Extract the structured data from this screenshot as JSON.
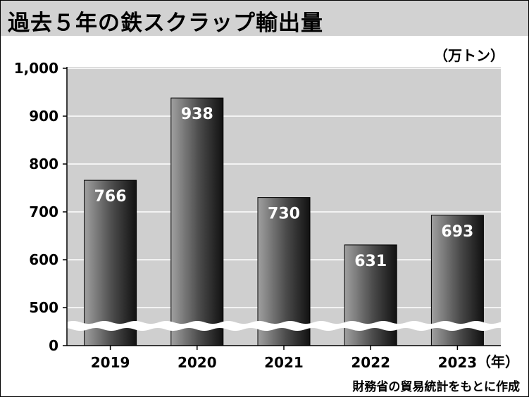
{
  "title": "過去５年の鉄スクラップ輸出量",
  "unit": "（万トン）",
  "source": "財務省の貿易統計をもとに作成",
  "chart_data": {
    "type": "bar",
    "title": "過去５年の鉄スクラップ輸出量",
    "categories": [
      "2019",
      "2020",
      "2021",
      "2022",
      "2023"
    ],
    "category_suffix": "（年）",
    "values": [
      766,
      938,
      730,
      631,
      693
    ],
    "y_ticks": [
      "0",
      "500",
      "600",
      "700",
      "800",
      "900",
      "1,000"
    ],
    "ylim": [
      450,
      1000
    ],
    "axis_break": true,
    "grid": true,
    "colors": {
      "bar_dark": "#1a1a1a",
      "bar_light": "#9a9a9a",
      "plot_bg": "#cfcfcf",
      "grid": "#ffffff"
    }
  }
}
